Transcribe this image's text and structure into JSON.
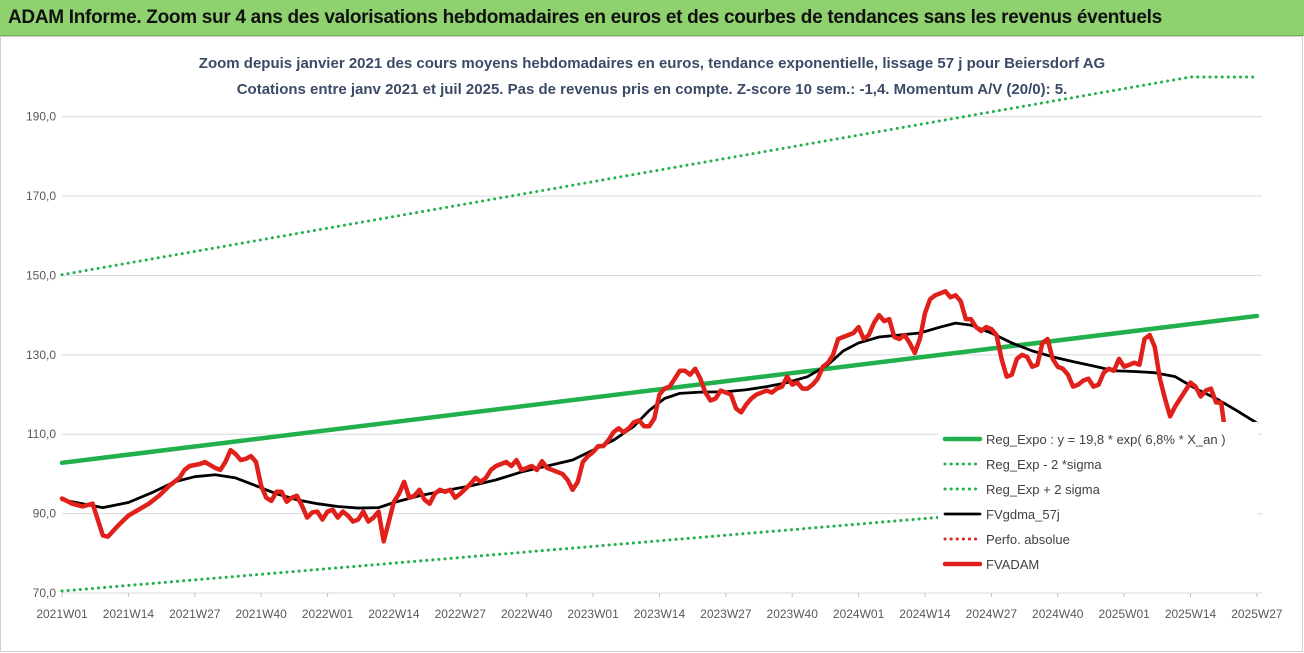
{
  "header": {
    "title": "ADAM Informe. Zoom sur 4 ans des valorisations hebdomadaires en euros et des courbes de tendances sans les revenus éventuels"
  },
  "chart_data": {
    "type": "line",
    "title": "Zoom depuis janvier 2021 des cours moyens hebdomadaires en euros, tendance exponentielle, lissage 57 j pour Beiersdorf AG",
    "subtitle": "Cotations entre janv 2021 et juil 2025. Pas de revenus pris en compte. Z-score 10 sem.: -1,4. Momentum A/V (20/0): 5.",
    "ylim": [
      70,
      200
    ],
    "y_ticks": [
      "70,0",
      "90,0",
      "110,0",
      "130,0",
      "150,0",
      "170,0",
      "190,0"
    ],
    "x_count": 236,
    "x_ticks": [
      {
        "i": 0,
        "label": "2021W01"
      },
      {
        "i": 13,
        "label": "2021W14"
      },
      {
        "i": 26,
        "label": "2021W27"
      },
      {
        "i": 39,
        "label": "2021W40"
      },
      {
        "i": 52,
        "label": "2022W01"
      },
      {
        "i": 65,
        "label": "2022W14"
      },
      {
        "i": 78,
        "label": "2022W27"
      },
      {
        "i": 91,
        "label": "2022W40"
      },
      {
        "i": 104,
        "label": "2023W01"
      },
      {
        "i": 117,
        "label": "2023W14"
      },
      {
        "i": 130,
        "label": "2023W27"
      },
      {
        "i": 143,
        "label": "2023W40"
      },
      {
        "i": 156,
        "label": "2024W01"
      },
      {
        "i": 169,
        "label": "2024W14"
      },
      {
        "i": 182,
        "label": "2024W27"
      },
      {
        "i": 195,
        "label": "2024W40"
      },
      {
        "i": 208,
        "label": "2025W01"
      },
      {
        "i": 221,
        "label": "2025W14"
      },
      {
        "i": 234,
        "label": "2025W27"
      }
    ],
    "grid": true,
    "legend_position": "bottom-right",
    "series": [
      {
        "name": "Reg_Expo : y = 19,8 * exp( 6,8% *  X_an )",
        "color": "#21b04b",
        "style": "solid-thick",
        "points": [
          [
            0,
            102.8
          ],
          [
            234,
            139.8
          ]
        ]
      },
      {
        "name": "Reg_Exp - 2 *sigma",
        "color": "#21b04b",
        "style": "dotted",
        "points": [
          [
            0,
            70.5
          ],
          [
            234,
            95.8
          ]
        ]
      },
      {
        "name": "Reg_Exp + 2 sigma",
        "color": "#21b04b",
        "style": "dotted",
        "points": [
          [
            0,
            150.2
          ],
          [
            221,
            200
          ],
          [
            234,
            200
          ]
        ]
      },
      {
        "name": "FVgdma_57j",
        "color": "#000000",
        "style": "solid",
        "points": [
          [
            0,
            93.5
          ],
          [
            4,
            92.5
          ],
          [
            8,
            91.5
          ],
          [
            13,
            92.8
          ],
          [
            18,
            95.5
          ],
          [
            22,
            98
          ],
          [
            26,
            99.3
          ],
          [
            30,
            99.8
          ],
          [
            34,
            99
          ],
          [
            38,
            97
          ],
          [
            42,
            95
          ],
          [
            46,
            93.5
          ],
          [
            50,
            92.5
          ],
          [
            54,
            91.8
          ],
          [
            58,
            91.4
          ],
          [
            62,
            91.5
          ],
          [
            65,
            92.8
          ],
          [
            70,
            94.5
          ],
          [
            75,
            95.8
          ],
          [
            80,
            97
          ],
          [
            85,
            98.5
          ],
          [
            90,
            100.5
          ],
          [
            95,
            102
          ],
          [
            100,
            103.5
          ],
          [
            104,
            106
          ],
          [
            108,
            108.5
          ],
          [
            112,
            112
          ],
          [
            115,
            116
          ],
          [
            118,
            119
          ],
          [
            121,
            120.3
          ],
          [
            125,
            120.6
          ],
          [
            130,
            120.7
          ],
          [
            134,
            121.2
          ],
          [
            138,
            122
          ],
          [
            142,
            123
          ],
          [
            146,
            124.5
          ],
          [
            150,
            127.5
          ],
          [
            153,
            131
          ],
          [
            156,
            133
          ],
          [
            160,
            134.5
          ],
          [
            164,
            135
          ],
          [
            168,
            135.5
          ],
          [
            172,
            137
          ],
          [
            175,
            138
          ],
          [
            178,
            137.5
          ],
          [
            182,
            135.5
          ],
          [
            186,
            133
          ],
          [
            190,
            131
          ],
          [
            194,
            129.5
          ],
          [
            198,
            128.3
          ],
          [
            202,
            127.2
          ],
          [
            206,
            126
          ],
          [
            210,
            125.8
          ],
          [
            214,
            125.5
          ],
          [
            218,
            124.5
          ],
          [
            222,
            121.5
          ],
          [
            226,
            119
          ],
          [
            230,
            116
          ],
          [
            234,
            112.8
          ]
        ]
      },
      {
        "name": "Perfo. absolue",
        "color": "#e0201a",
        "style": "dotted",
        "points": []
      },
      {
        "name": "FVADAM",
        "color": "#e0201a",
        "style": "solid-thick",
        "points": [
          [
            0,
            93.8
          ],
          [
            2,
            92.5
          ],
          [
            4,
            91.8
          ],
          [
            6,
            92.5
          ],
          [
            8,
            84.5
          ],
          [
            9,
            84.2
          ],
          [
            11,
            87
          ],
          [
            13,
            89.5
          ],
          [
            15,
            91
          ],
          [
            17,
            92.5
          ],
          [
            19,
            94.5
          ],
          [
            21,
            97
          ],
          [
            23,
            99
          ],
          [
            24,
            101
          ],
          [
            25,
            102
          ],
          [
            27,
            102.5
          ],
          [
            28,
            103
          ],
          [
            30,
            101.5
          ],
          [
            31,
            101
          ],
          [
            32,
            103
          ],
          [
            33,
            106
          ],
          [
            34,
            105
          ],
          [
            35,
            103.5
          ],
          [
            36,
            103.8
          ],
          [
            37,
            104.5
          ],
          [
            38,
            103
          ],
          [
            39,
            97
          ],
          [
            40,
            94
          ],
          [
            41,
            93.2
          ],
          [
            42,
            95.5
          ],
          [
            43,
            95.5
          ],
          [
            44,
            93
          ],
          [
            45,
            94
          ],
          [
            46,
            94.5
          ],
          [
            47,
            92
          ],
          [
            48,
            89
          ],
          [
            49,
            90.3
          ],
          [
            50,
            90.5
          ],
          [
            51,
            88.5
          ],
          [
            52,
            90.5
          ],
          [
            53,
            91
          ],
          [
            54,
            89
          ],
          [
            55,
            90.5
          ],
          [
            56,
            89.5
          ],
          [
            57,
            88
          ],
          [
            58,
            88.5
          ],
          [
            59,
            90.5
          ],
          [
            60,
            88
          ],
          [
            61,
            89
          ],
          [
            62,
            90.5
          ],
          [
            63,
            83
          ],
          [
            64,
            88
          ],
          [
            65,
            93
          ],
          [
            66,
            95
          ],
          [
            67,
            98
          ],
          [
            68,
            94
          ],
          [
            69,
            94.5
          ],
          [
            70,
            96
          ],
          [
            71,
            93.5
          ],
          [
            72,
            92.5
          ],
          [
            73,
            95
          ],
          [
            74,
            96
          ],
          [
            75,
            95.5
          ],
          [
            76,
            96
          ],
          [
            77,
            94
          ],
          [
            78,
            95
          ],
          [
            80,
            97.5
          ],
          [
            81,
            99
          ],
          [
            82,
            98
          ],
          [
            83,
            99
          ],
          [
            84,
            101
          ],
          [
            85,
            102
          ],
          [
            86,
            102.5
          ],
          [
            87,
            103
          ],
          [
            88,
            102
          ],
          [
            89,
            103.5
          ],
          [
            90,
            101
          ],
          [
            91,
            101.5
          ],
          [
            92,
            102
          ],
          [
            93,
            101
          ],
          [
            94,
            103.2
          ],
          [
            95,
            101.5
          ],
          [
            96,
            101
          ],
          [
            97,
            100.5
          ],
          [
            98,
            100
          ],
          [
            99,
            98.5
          ],
          [
            100,
            96
          ],
          [
            101,
            98
          ],
          [
            102,
            103
          ],
          [
            103,
            104.5
          ],
          [
            104,
            105.5
          ],
          [
            105,
            107
          ],
          [
            106,
            107
          ],
          [
            107,
            108.5
          ],
          [
            108,
            110.5
          ],
          [
            109,
            111.5
          ],
          [
            110,
            110.5
          ],
          [
            111,
            111.5
          ],
          [
            112,
            113
          ],
          [
            113,
            113.5
          ],
          [
            114,
            112
          ],
          [
            115,
            112
          ],
          [
            116,
            114
          ],
          [
            117,
            120
          ],
          [
            118,
            121.5
          ],
          [
            119,
            122
          ],
          [
            120,
            124
          ],
          [
            121,
            126
          ],
          [
            122,
            126
          ],
          [
            123,
            125
          ],
          [
            124,
            126.5
          ],
          [
            125,
            124
          ],
          [
            126,
            120.5
          ],
          [
            127,
            118.5
          ],
          [
            128,
            119
          ],
          [
            129,
            121
          ],
          [
            130,
            120.5
          ],
          [
            131,
            120
          ],
          [
            132,
            116.5
          ],
          [
            133,
            115.5
          ],
          [
            134,
            117.5
          ],
          [
            135,
            119
          ],
          [
            136,
            120
          ],
          [
            137,
            120.5
          ],
          [
            138,
            121
          ],
          [
            139,
            120.5
          ],
          [
            140,
            121.5
          ],
          [
            141,
            122
          ],
          [
            142,
            124.5
          ],
          [
            143,
            122.5
          ],
          [
            144,
            123
          ],
          [
            145,
            121.5
          ],
          [
            146,
            121.5
          ],
          [
            147,
            122.5
          ],
          [
            148,
            124
          ],
          [
            149,
            127
          ],
          [
            150,
            128
          ],
          [
            151,
            130
          ],
          [
            152,
            134
          ],
          [
            153,
            134.5
          ],
          [
            154,
            135
          ],
          [
            155,
            135.5
          ],
          [
            156,
            137
          ],
          [
            157,
            134
          ],
          [
            158,
            135
          ],
          [
            159,
            138
          ],
          [
            160,
            140
          ],
          [
            161,
            138.5
          ],
          [
            162,
            139
          ],
          [
            163,
            134.5
          ],
          [
            164,
            134
          ],
          [
            165,
            135
          ],
          [
            166,
            133
          ],
          [
            167,
            130.5
          ],
          [
            168,
            134
          ],
          [
            169,
            140.5
          ],
          [
            170,
            144
          ],
          [
            171,
            145
          ],
          [
            172,
            145.5
          ],
          [
            173,
            146
          ],
          [
            174,
            144.5
          ],
          [
            175,
            145
          ],
          [
            176,
            143.5
          ],
          [
            177,
            139
          ],
          [
            178,
            139
          ],
          [
            179,
            137
          ],
          [
            180,
            136
          ],
          [
            181,
            137
          ],
          [
            182,
            136.5
          ],
          [
            183,
            135
          ],
          [
            184,
            129
          ],
          [
            185,
            124.5
          ],
          [
            186,
            125
          ],
          [
            187,
            129
          ],
          [
            188,
            130
          ],
          [
            189,
            129.5
          ],
          [
            190,
            127
          ],
          [
            191,
            127.5
          ],
          [
            192,
            133
          ],
          [
            193,
            134
          ],
          [
            194,
            129
          ],
          [
            195,
            127
          ],
          [
            196,
            126.5
          ],
          [
            197,
            125
          ],
          [
            198,
            122
          ],
          [
            199,
            122.5
          ],
          [
            200,
            123.5
          ],
          [
            201,
            124
          ],
          [
            202,
            122
          ],
          [
            203,
            122.5
          ],
          [
            204,
            125.5
          ],
          [
            205,
            126.5
          ],
          [
            206,
            126
          ],
          [
            207,
            129
          ],
          [
            208,
            127
          ],
          [
            209,
            127.5
          ],
          [
            210,
            128
          ],
          [
            211,
            127.5
          ],
          [
            212,
            134
          ],
          [
            213,
            135
          ],
          [
            214,
            132
          ],
          [
            215,
            124
          ],
          [
            216,
            119
          ],
          [
            217,
            114.5
          ],
          [
            218,
            117
          ],
          [
            219,
            119
          ],
          [
            220,
            121
          ],
          [
            221,
            123
          ],
          [
            222,
            122
          ],
          [
            223,
            119.5
          ],
          [
            224,
            121
          ],
          [
            225,
            121.5
          ],
          [
            226,
            118
          ],
          [
            227,
            118
          ],
          [
            228,
            108.5
          ],
          [
            229,
            107.5
          ],
          [
            230,
            107.5
          ]
        ]
      }
    ]
  }
}
